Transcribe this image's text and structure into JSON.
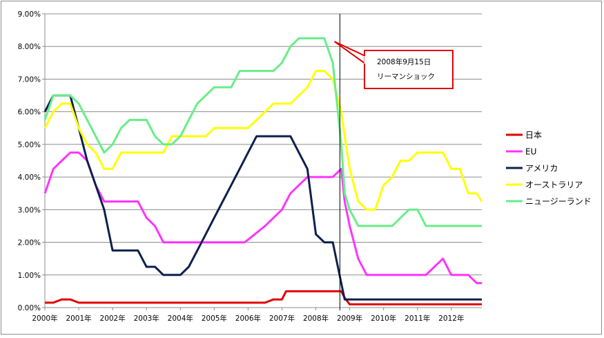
{
  "chart_data": {
    "type": "line",
    "title": "",
    "xlabel": "",
    "ylabel": "",
    "x_ticks": [
      "2000年",
      "2001年",
      "2002年",
      "2003年",
      "2004年",
      "2005年",
      "2006年",
      "2007年",
      "2008年",
      "2009年",
      "2010年",
      "2011年",
      "2012年"
    ],
    "xlim": [
      2000,
      2012.9
    ],
    "ylim": [
      0,
      9
    ],
    "y_ticks": [
      "0.00%",
      "1.00%",
      "2.00%",
      "3.00%",
      "4.00%",
      "5.00%",
      "6.00%",
      "7.00%",
      "8.00%",
      "9.00%"
    ],
    "y_tick_values": [
      0,
      1,
      2,
      3,
      4,
      5,
      6,
      7,
      8,
      9
    ],
    "grid": "horizontal",
    "legend_position": "right",
    "vertical_marker": {
      "x": 2008.71
    },
    "annotation": {
      "line1": "2008年9月15日",
      "line2": "リーマンショック",
      "points_to": {
        "x": 2008.55,
        "y": 8.15
      }
    },
    "series": [
      {
        "name": "日本",
        "color": "#e00000",
        "points": [
          [
            2000.0,
            0.15
          ],
          [
            2000.25,
            0.15
          ],
          [
            2000.5,
            0.25
          ],
          [
            2000.75,
            0.25
          ],
          [
            2001.0,
            0.15
          ],
          [
            2006.5,
            0.15
          ],
          [
            2006.75,
            0.25
          ],
          [
            2007.0,
            0.25
          ],
          [
            2007.12,
            0.5
          ],
          [
            2008.5,
            0.5
          ],
          [
            2008.75,
            0.5
          ],
          [
            2008.85,
            0.3
          ],
          [
            2009.0,
            0.1
          ],
          [
            2012.9,
            0.1
          ]
        ]
      },
      {
        "name": "EU",
        "color": "#ff33ff",
        "points": [
          [
            2000.0,
            3.5
          ],
          [
            2000.25,
            4.25
          ],
          [
            2000.5,
            4.5
          ],
          [
            2000.75,
            4.75
          ],
          [
            2001.0,
            4.75
          ],
          [
            2001.25,
            4.5
          ],
          [
            2001.5,
            3.75
          ],
          [
            2001.75,
            3.25
          ],
          [
            2002.0,
            3.25
          ],
          [
            2002.75,
            3.25
          ],
          [
            2003.0,
            2.75
          ],
          [
            2003.25,
            2.5
          ],
          [
            2003.5,
            2.0
          ],
          [
            2005.9,
            2.0
          ],
          [
            2006.2,
            2.25
          ],
          [
            2006.5,
            2.5
          ],
          [
            2006.75,
            2.75
          ],
          [
            2007.0,
            3.0
          ],
          [
            2007.25,
            3.5
          ],
          [
            2007.5,
            3.75
          ],
          [
            2007.75,
            4.0
          ],
          [
            2008.5,
            4.0
          ],
          [
            2008.75,
            4.25
          ],
          [
            2008.85,
            3.25
          ],
          [
            2009.0,
            2.5
          ],
          [
            2009.25,
            1.5
          ],
          [
            2009.5,
            1.0
          ],
          [
            2011.25,
            1.0
          ],
          [
            2011.5,
            1.25
          ],
          [
            2011.75,
            1.5
          ],
          [
            2012.0,
            1.0
          ],
          [
            2012.5,
            1.0
          ],
          [
            2012.75,
            0.75
          ],
          [
            2012.9,
            0.75
          ]
        ]
      },
      {
        "name": "アメリカ",
        "color": "#0d1f4d",
        "points": [
          [
            2000.0,
            6.0
          ],
          [
            2000.25,
            6.5
          ],
          [
            2000.75,
            6.5
          ],
          [
            2001.0,
            5.5
          ],
          [
            2001.25,
            4.5
          ],
          [
            2001.5,
            3.75
          ],
          [
            2001.75,
            3.0
          ],
          [
            2002.0,
            1.75
          ],
          [
            2002.75,
            1.75
          ],
          [
            2003.0,
            1.25
          ],
          [
            2003.25,
            1.25
          ],
          [
            2003.5,
            1.0
          ],
          [
            2004.0,
            1.0
          ],
          [
            2004.25,
            1.25
          ],
          [
            2004.5,
            1.75
          ],
          [
            2004.75,
            2.25
          ],
          [
            2005.0,
            2.75
          ],
          [
            2005.25,
            3.25
          ],
          [
            2005.5,
            3.75
          ],
          [
            2005.75,
            4.25
          ],
          [
            2006.0,
            4.75
          ],
          [
            2006.25,
            5.25
          ],
          [
            2007.0,
            5.25
          ],
          [
            2007.25,
            5.25
          ],
          [
            2007.5,
            4.75
          ],
          [
            2007.75,
            4.25
          ],
          [
            2008.0,
            2.25
          ],
          [
            2008.25,
            2.0
          ],
          [
            2008.5,
            2.0
          ],
          [
            2008.85,
            0.25
          ],
          [
            2012.9,
            0.25
          ]
        ]
      },
      {
        "name": "オーストラリア",
        "color": "#ffff00",
        "points": [
          [
            2000.0,
            5.5
          ],
          [
            2000.25,
            6.0
          ],
          [
            2000.5,
            6.25
          ],
          [
            2000.75,
            6.25
          ],
          [
            2001.0,
            5.5
          ],
          [
            2001.25,
            5.0
          ],
          [
            2001.5,
            4.75
          ],
          [
            2001.75,
            4.25
          ],
          [
            2002.0,
            4.25
          ],
          [
            2002.25,
            4.75
          ],
          [
            2003.5,
            4.75
          ],
          [
            2003.75,
            5.25
          ],
          [
            2004.75,
            5.25
          ],
          [
            2005.0,
            5.5
          ],
          [
            2006.0,
            5.5
          ],
          [
            2006.25,
            5.75
          ],
          [
            2006.5,
            6.0
          ],
          [
            2006.75,
            6.25
          ],
          [
            2007.25,
            6.25
          ],
          [
            2007.5,
            6.5
          ],
          [
            2007.75,
            6.75
          ],
          [
            2008.0,
            7.25
          ],
          [
            2008.25,
            7.25
          ],
          [
            2008.5,
            7.0
          ],
          [
            2008.75,
            6.0
          ],
          [
            2008.85,
            5.25
          ],
          [
            2009.0,
            4.25
          ],
          [
            2009.25,
            3.25
          ],
          [
            2009.5,
            3.0
          ],
          [
            2009.75,
            3.0
          ],
          [
            2010.0,
            3.75
          ],
          [
            2010.25,
            4.0
          ],
          [
            2010.5,
            4.5
          ],
          [
            2010.75,
            4.5
          ],
          [
            2011.0,
            4.75
          ],
          [
            2011.75,
            4.75
          ],
          [
            2012.0,
            4.25
          ],
          [
            2012.25,
            4.25
          ],
          [
            2012.5,
            3.5
          ],
          [
            2012.75,
            3.5
          ],
          [
            2012.9,
            3.25
          ]
        ]
      },
      {
        "name": "ニュージーランド",
        "color": "#66ee88",
        "points": [
          [
            2000.0,
            5.75
          ],
          [
            2000.25,
            6.5
          ],
          [
            2000.75,
            6.5
          ],
          [
            2001.0,
            6.25
          ],
          [
            2001.25,
            5.75
          ],
          [
            2001.5,
            5.25
          ],
          [
            2001.75,
            4.75
          ],
          [
            2002.0,
            5.0
          ],
          [
            2002.25,
            5.5
          ],
          [
            2002.5,
            5.75
          ],
          [
            2003.0,
            5.75
          ],
          [
            2003.25,
            5.25
          ],
          [
            2003.5,
            5.0
          ],
          [
            2003.75,
            5.0
          ],
          [
            2004.0,
            5.25
          ],
          [
            2004.25,
            5.75
          ],
          [
            2004.5,
            6.25
          ],
          [
            2004.75,
            6.5
          ],
          [
            2005.0,
            6.75
          ],
          [
            2005.5,
            6.75
          ],
          [
            2005.75,
            7.25
          ],
          [
            2006.75,
            7.25
          ],
          [
            2007.0,
            7.5
          ],
          [
            2007.25,
            8.0
          ],
          [
            2007.5,
            8.25
          ],
          [
            2008.25,
            8.25
          ],
          [
            2008.5,
            7.5
          ],
          [
            2008.75,
            5.0
          ],
          [
            2008.85,
            3.5
          ],
          [
            2009.0,
            3.0
          ],
          [
            2009.25,
            2.5
          ],
          [
            2010.25,
            2.5
          ],
          [
            2010.75,
            3.0
          ],
          [
            2011.0,
            3.0
          ],
          [
            2011.25,
            2.5
          ],
          [
            2012.9,
            2.5
          ]
        ]
      }
    ]
  }
}
